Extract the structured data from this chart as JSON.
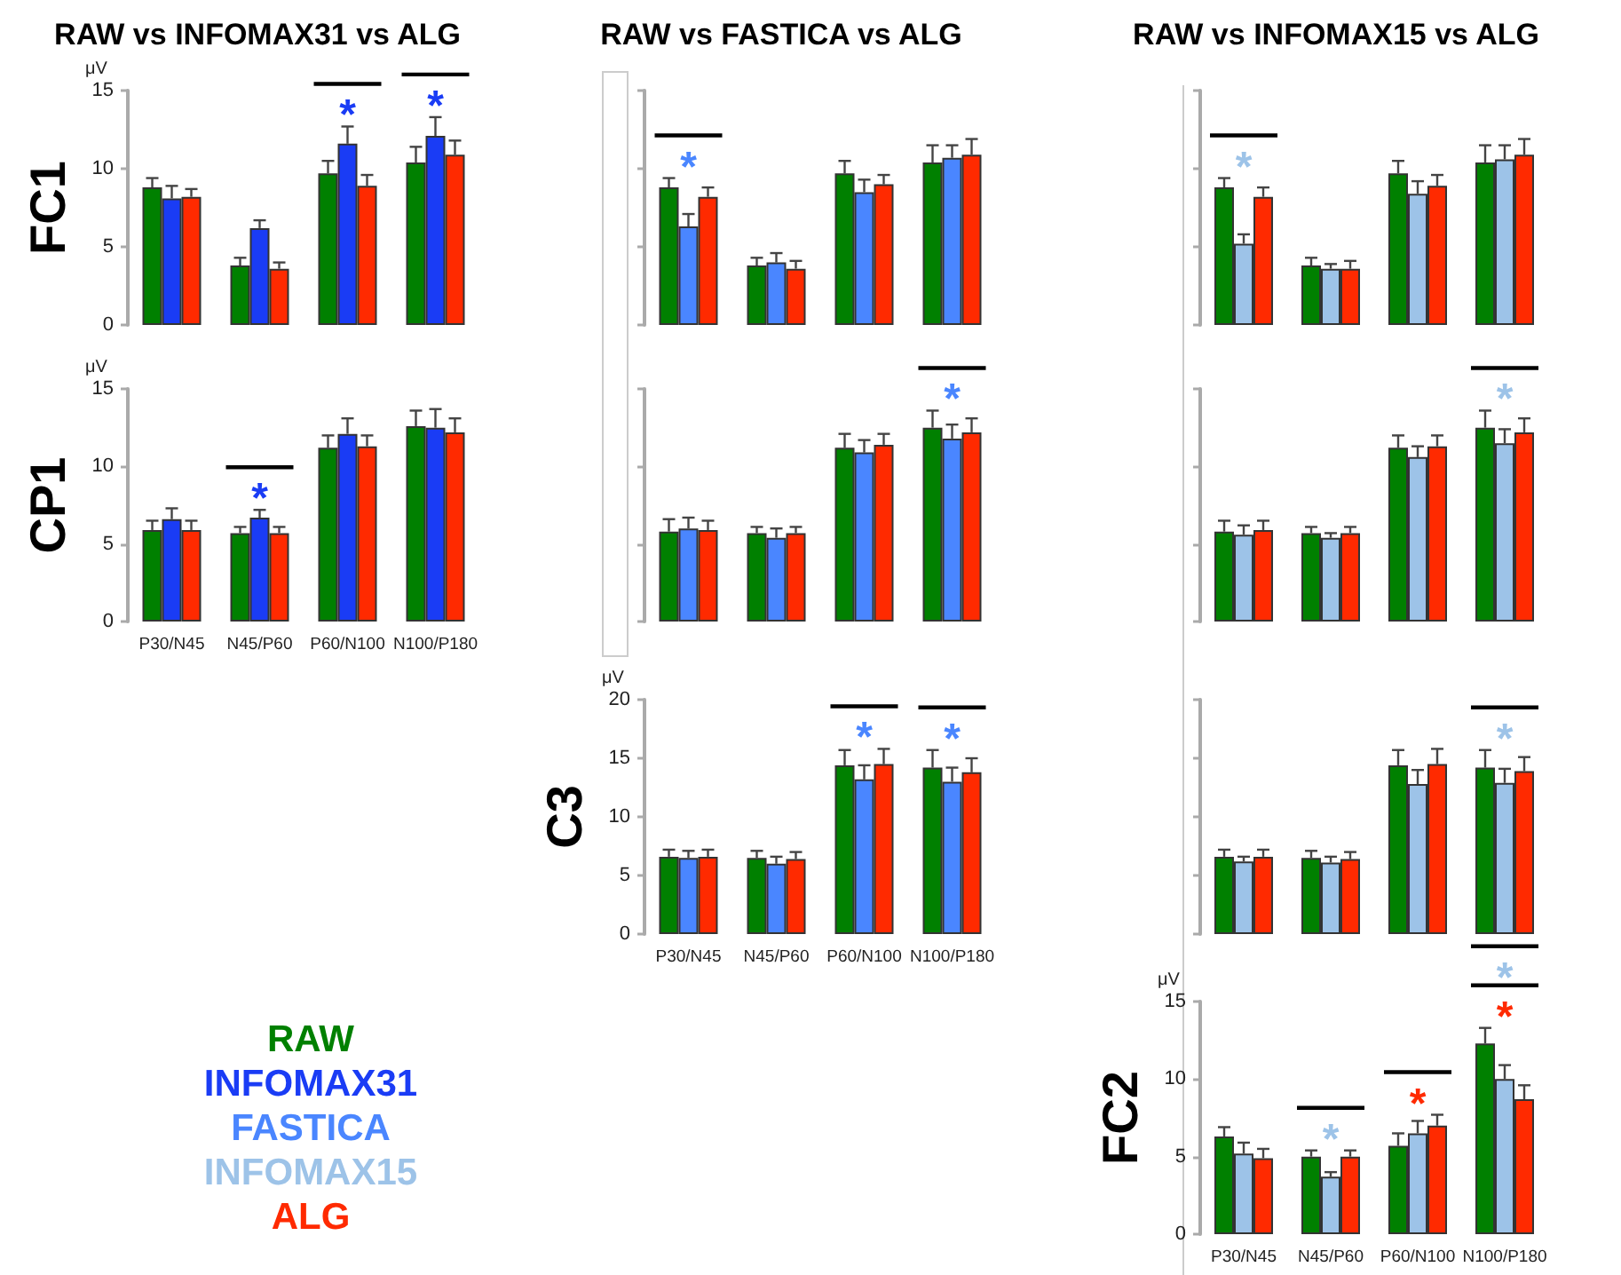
{
  "chart_data": [
    {
      "type": "bar",
      "title": "RAW vs INFOMAX31 vs ALG",
      "ylabel": "FC1",
      "categories": [
        "P30/N45",
        "N45/P60",
        "P60/N100",
        "N100/P180"
      ],
      "ylim": [
        0,
        15
      ],
      "yticks": [
        0,
        5,
        10,
        15
      ],
      "tick_labels": "y",
      "grid": false,
      "series": [
        {
          "color": "#008000",
          "values": [
            8.8,
            3.8,
            9.7,
            10.4
          ],
          "errors": [
            0.6,
            0.5,
            0.8,
            1.0
          ]
        },
        {
          "color": "#1a3cf5",
          "values": [
            8.1,
            6.2,
            11.6,
            12.1
          ],
          "errors": [
            0.8,
            0.5,
            1.1,
            1.2
          ]
        },
        {
          "color": "#ff2a00",
          "values": [
            8.2,
            3.6,
            8.9,
            10.9
          ],
          "errors": [
            0.5,
            0.4,
            0.7,
            0.9
          ]
        }
      ],
      "annotations": [
        "μV",
        {
          "text": "*",
          "x": "P60/N100",
          "y": 11.6
        },
        {
          "text": "*",
          "x": "N100/P180",
          "y": 12.1
        }
      ]
    },
    {
      "type": "bar",
      "title": "RAW vs FASTICA vs ALG",
      "categories": [
        "P30/N45",
        "N45/P60",
        "P60/N100",
        "N100/P180"
      ],
      "ylim": [
        0,
        15
      ],
      "yticks": [
        0,
        5,
        10,
        15
      ],
      "tick_labels": false,
      "grid": false,
      "series": [
        {
          "color": "#008000",
          "values": [
            8.8,
            3.8,
            9.7,
            10.4
          ],
          "errors": [
            0.6,
            0.5,
            0.8,
            1.1
          ]
        },
        {
          "color": "#4a86ff",
          "values": [
            6.3,
            4.0,
            8.5,
            10.7
          ],
          "errors": [
            0.8,
            0.6,
            0.8,
            0.8
          ]
        },
        {
          "color": "#ff2a00",
          "values": [
            8.2,
            3.6,
            9.0,
            10.9
          ],
          "errors": [
            0.6,
            0.5,
            0.6,
            1.0
          ]
        }
      ],
      "annotations": [
        {
          "text": "*",
          "x": "P30/N45",
          "y": 6.3
        }
      ]
    },
    {
      "type": "bar",
      "title": "RAW vs INFOMAX15 vs ALG",
      "categories": [
        "P30/N45",
        "N45/P60",
        "P60/N100",
        "N100/P180"
      ],
      "ylim": [
        0,
        15
      ],
      "yticks": [
        0,
        5,
        10,
        15
      ],
      "tick_labels": false,
      "grid": false,
      "series": [
        {
          "color": "#008000",
          "values": [
            8.8,
            3.8,
            9.7,
            10.4
          ],
          "errors": [
            0.6,
            0.5,
            0.8,
            1.1
          ]
        },
        {
          "color": "#9dc3e8",
          "values": [
            5.2,
            3.6,
            8.4,
            10.6
          ],
          "errors": [
            0.6,
            0.3,
            0.8,
            0.9
          ]
        },
        {
          "color": "#ff2a00",
          "values": [
            8.2,
            3.6,
            8.9,
            10.9
          ],
          "errors": [
            0.6,
            0.5,
            0.7,
            1.0
          ]
        }
      ],
      "annotations": [
        {
          "text": "*",
          "x": "P30/N45",
          "y": 5.2
        }
      ]
    },
    {
      "type": "bar",
      "ylabel": "CP1",
      "categories": [
        "P30/N45",
        "N45/P60",
        "P60/N100",
        "N100/P180"
      ],
      "ylim": [
        0,
        15
      ],
      "yticks": [
        0,
        5,
        10,
        15
      ],
      "grid": false,
      "legend": "bottom",
      "series": [
        {
          "name": "RAW",
          "color": "#008000",
          "values": [
            5.9,
            5.7,
            11.2,
            12.6
          ],
          "errors": [
            0.6,
            0.4,
            0.8,
            1.0
          ]
        },
        {
          "name": "INFOMAX31",
          "color": "#1a3cf5",
          "values": [
            6.6,
            6.7,
            12.1,
            12.5
          ],
          "errors": [
            0.7,
            0.5,
            1.0,
            1.2
          ]
        },
        {
          "name": "ALG",
          "color": "#ff2a00",
          "values": [
            5.9,
            5.7,
            11.3,
            12.2
          ],
          "errors": [
            0.6,
            0.4,
            0.7,
            0.9
          ]
        }
      ],
      "annotations": [
        "μV",
        {
          "text": "*",
          "x": "N45/P60",
          "y": 6.7
        }
      ]
    },
    {
      "type": "bar",
      "categories": [
        "P30/N45",
        "N45/P60",
        "P60/N100",
        "N100/P180"
      ],
      "ylim": [
        0,
        15
      ],
      "yticks": [
        0,
        5,
        10,
        15
      ],
      "tick_labels": false,
      "grid": false,
      "series": [
        {
          "color": "#008000",
          "values": [
            5.8,
            5.7,
            11.2,
            12.5
          ],
          "errors": [
            0.8,
            0.4,
            0.9,
            1.1
          ]
        },
        {
          "color": "#4a86ff",
          "values": [
            6.0,
            5.4,
            10.9,
            11.8
          ],
          "errors": [
            0.7,
            0.6,
            0.8,
            0.9
          ]
        },
        {
          "color": "#ff2a00",
          "values": [
            5.9,
            5.7,
            11.4,
            12.2
          ],
          "errors": [
            0.6,
            0.4,
            0.7,
            0.9
          ]
        }
      ],
      "annotations": [
        {
          "text": "*",
          "x": "N100/P180",
          "y": 11.8
        }
      ]
    },
    {
      "type": "bar",
      "categories": [
        "P30/N45",
        "N45/P60",
        "P60/N100",
        "N100/P180"
      ],
      "ylim": [
        0,
        15
      ],
      "yticks": [
        0,
        5,
        10,
        15
      ],
      "tick_labels": false,
      "grid": false,
      "series": [
        {
          "color": "#008000",
          "values": [
            5.8,
            5.7,
            11.2,
            12.5
          ],
          "errors": [
            0.7,
            0.4,
            0.8,
            1.1
          ]
        },
        {
          "color": "#9dc3e8",
          "values": [
            5.6,
            5.4,
            10.6,
            11.5
          ],
          "errors": [
            0.6,
            0.3,
            0.7,
            0.9
          ]
        },
        {
          "color": "#ff2a00",
          "values": [
            5.9,
            5.7,
            11.3,
            12.2
          ],
          "errors": [
            0.6,
            0.4,
            0.7,
            0.9
          ]
        }
      ],
      "annotations": [
        {
          "text": "*",
          "x": "N100/P180",
          "y": 11.5
        }
      ]
    },
    {
      "type": "bar",
      "ylabel": "C3",
      "categories": [
        "P30/N45",
        "N45/P60",
        "P60/N100",
        "N100/P180"
      ],
      "ylim": [
        0,
        20
      ],
      "yticks": [
        0,
        5,
        10,
        15,
        20
      ],
      "grid": false,
      "series": [
        {
          "color": "#008000",
          "values": [
            6.6,
            6.5,
            14.4,
            14.2
          ],
          "errors": [
            0.6,
            0.6,
            1.3,
            1.5
          ]
        },
        {
          "name": "FASTICA",
          "color": "#4a86ff",
          "values": [
            6.5,
            6.0,
            13.2,
            13.0
          ],
          "errors": [
            0.6,
            0.6,
            1.2,
            1.2
          ]
        },
        {
          "color": "#ff2a00",
          "values": [
            6.6,
            6.4,
            14.5,
            13.8
          ],
          "errors": [
            0.6,
            0.6,
            1.3,
            1.2
          ]
        }
      ],
      "annotations": [
        "μV",
        {
          "text": "*",
          "x": "P60/N100",
          "y": 13.2
        },
        {
          "text": "*",
          "x": "N100/P180",
          "y": 13.0
        }
      ]
    },
    {
      "type": "bar",
      "categories": [
        "P30/N45",
        "N45/P60",
        "P60/N100",
        "N100/P180"
      ],
      "ylim": [
        0,
        20
      ],
      "yticks": [
        0,
        5,
        10,
        15,
        20
      ],
      "tick_labels": false,
      "grid": false,
      "series": [
        {
          "color": "#008000",
          "values": [
            6.6,
            6.5,
            14.4,
            14.2
          ],
          "errors": [
            0.6,
            0.6,
            1.3,
            1.5
          ]
        },
        {
          "color": "#9dc3e8",
          "values": [
            6.2,
            6.1,
            12.8,
            12.9
          ],
          "errors": [
            0.4,
            0.5,
            1.2,
            1.2
          ]
        },
        {
          "color": "#ff2a00",
          "values": [
            6.6,
            6.4,
            14.5,
            13.9
          ],
          "errors": [
            0.6,
            0.6,
            1.3,
            1.2
          ]
        }
      ],
      "annotations": [
        {
          "text": "*",
          "x": "N100/P180",
          "y": 12.9
        }
      ]
    },
    {
      "type": "bar",
      "ylabel": "FC2",
      "categories": [
        "P30/N45",
        "N45/P60",
        "P60/N100",
        "N100/P180"
      ],
      "ylim": [
        0,
        15
      ],
      "yticks": [
        0,
        5,
        10,
        15
      ],
      "grid": false,
      "series": [
        {
          "color": "#008000",
          "values": [
            6.3,
            5.0,
            5.7,
            12.3
          ],
          "errors": [
            0.6,
            0.4,
            0.8,
            1.0
          ]
        },
        {
          "name": "INFOMAX15",
          "color": "#9dc3e8",
          "values": [
            5.2,
            3.7,
            6.5,
            10.0
          ],
          "errors": [
            0.7,
            0.3,
            0.8,
            0.9
          ]
        },
        {
          "color": "#ff2a00",
          "values": [
            4.9,
            5.0,
            7.0,
            8.7
          ],
          "errors": [
            0.6,
            0.4,
            0.7,
            0.9
          ]
        }
      ],
      "annotations": [
        "μV",
        {
          "text": "*",
          "x": "N45/P60",
          "y": 3.7
        },
        {
          "text": "*",
          "x": "P60/N100",
          "y": 7.0
        },
        {
          "text": "*",
          "x": "N100/P180",
          "y": 10.0
        },
        {
          "text": "*",
          "x": "N100/P180",
          "y": 8.7
        }
      ]
    }
  ]
}
